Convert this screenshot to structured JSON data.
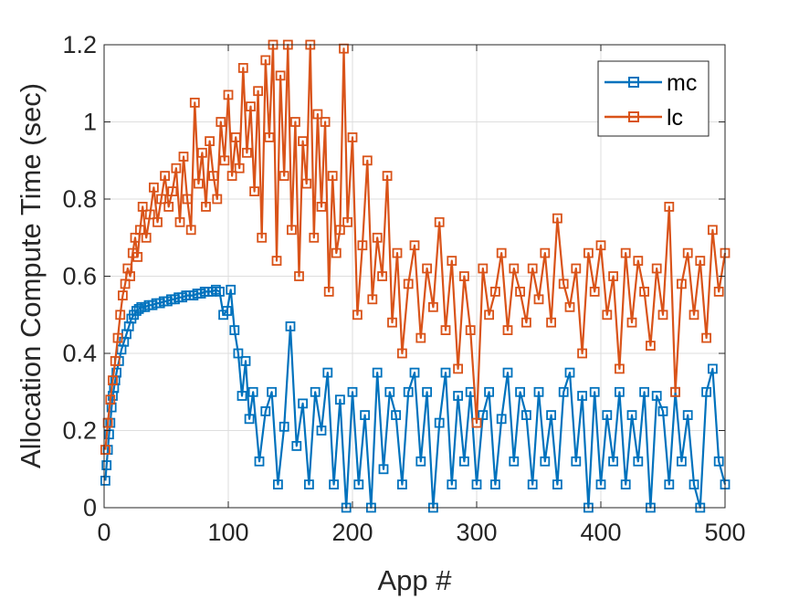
{
  "chart_data": {
    "type": "line",
    "xlabel": "App #",
    "ylabel": "Allocation Compute Time (sec)",
    "xlim": [
      0,
      500
    ],
    "ylim": [
      0,
      1.2
    ],
    "xticks": [
      0,
      100,
      200,
      300,
      400,
      500
    ],
    "yticks": [
      0,
      0.2,
      0.4,
      0.6,
      0.8,
      1,
      1.2
    ],
    "xtick_labels": [
      "0",
      "100",
      "200",
      "300",
      "400",
      "500"
    ],
    "ytick_labels": [
      "0",
      "0.2",
      "0.4",
      "0.6",
      "0.8",
      "1",
      "1.2"
    ],
    "grid": true,
    "legend_position": "top-right",
    "markers": "square",
    "series": [
      {
        "name": "mc",
        "color": "#0072BD",
        "x": [
          1,
          2,
          3,
          4,
          5,
          6,
          7,
          8,
          9,
          10,
          12,
          14,
          16,
          18,
          20,
          22,
          24,
          26,
          28,
          30,
          33,
          36,
          39,
          42,
          45,
          48,
          51,
          54,
          57,
          60,
          63,
          66,
          69,
          72,
          75,
          78,
          81,
          84,
          87,
          90,
          93,
          96,
          99,
          102,
          105,
          108,
          111,
          114,
          117,
          120,
          125,
          130,
          135,
          140,
          145,
          150,
          155,
          160,
          165,
          170,
          175,
          180,
          185,
          190,
          195,
          200,
          205,
          210,
          215,
          220,
          225,
          230,
          235,
          240,
          245,
          250,
          255,
          260,
          265,
          270,
          275,
          280,
          285,
          290,
          295,
          300,
          305,
          310,
          315,
          320,
          325,
          330,
          335,
          340,
          345,
          350,
          355,
          360,
          365,
          370,
          375,
          380,
          385,
          390,
          395,
          400,
          405,
          410,
          415,
          420,
          425,
          430,
          435,
          440,
          445,
          450,
          455,
          460,
          465,
          470,
          475,
          480,
          485,
          490,
          495,
          500
        ],
        "y": [
          0.07,
          0.11,
          0.15,
          0.19,
          0.22,
          0.26,
          0.29,
          0.31,
          0.33,
          0.35,
          0.38,
          0.41,
          0.43,
          0.45,
          0.47,
          0.49,
          0.5,
          0.51,
          0.515,
          0.52,
          0.52,
          0.525,
          0.525,
          0.53,
          0.53,
          0.535,
          0.535,
          0.54,
          0.54,
          0.545,
          0.545,
          0.55,
          0.55,
          0.55,
          0.555,
          0.555,
          0.56,
          0.56,
          0.56,
          0.565,
          0.56,
          0.5,
          0.51,
          0.565,
          0.46,
          0.4,
          0.29,
          0.38,
          0.23,
          0.3,
          0.12,
          0.25,
          0.3,
          0.06,
          0.21,
          0.47,
          0.16,
          0.27,
          0.06,
          0.3,
          0.2,
          0.35,
          0.06,
          0.28,
          0,
          0.3,
          0.06,
          0.24,
          0,
          0.35,
          0.1,
          0.3,
          0.24,
          0.06,
          0.3,
          0.35,
          0.12,
          0.3,
          0,
          0.22,
          0.35,
          0.06,
          0.29,
          0.12,
          0.3,
          0.06,
          0.24,
          0.3,
          0.06,
          0.23,
          0.35,
          0.12,
          0.3,
          0.24,
          0.06,
          0.3,
          0.12,
          0.24,
          0.06,
          0.3,
          0.35,
          0.12,
          0.29,
          0,
          0.3,
          0.06,
          0.24,
          0.12,
          0.3,
          0.06,
          0.24,
          0.12,
          0.3,
          0,
          0.29,
          0.25,
          0.06,
          0.3,
          0.12,
          0.24,
          0.06,
          0,
          0.3,
          0.36,
          0.12,
          0.06
        ]
      },
      {
        "name": "lc",
        "color": "#D95319",
        "x": [
          1,
          3,
          5,
          7,
          9,
          11,
          13,
          15,
          17,
          19,
          21,
          23,
          25,
          27,
          29,
          31,
          34,
          37,
          40,
          43,
          46,
          49,
          52,
          55,
          58,
          61,
          64,
          67,
          70,
          73,
          76,
          79,
          82,
          85,
          88,
          91,
          94,
          97,
          100,
          103,
          106,
          109,
          112,
          115,
          118,
          121,
          124,
          127,
          130,
          133,
          136,
          139,
          142,
          145,
          148,
          151,
          154,
          157,
          160,
          163,
          166,
          169,
          172,
          175,
          178,
          181,
          184,
          187,
          190,
          193,
          196,
          200,
          204,
          208,
          212,
          216,
          220,
          224,
          228,
          232,
          236,
          240,
          245,
          250,
          255,
          260,
          265,
          270,
          275,
          280,
          285,
          290,
          295,
          300,
          305,
          310,
          315,
          320,
          325,
          330,
          335,
          340,
          345,
          350,
          355,
          360,
          365,
          370,
          375,
          380,
          385,
          390,
          395,
          400,
          405,
          410,
          415,
          420,
          425,
          430,
          435,
          440,
          445,
          450,
          455,
          460,
          465,
          470,
          475,
          480,
          485,
          490,
          495,
          500
        ],
        "y": [
          0.15,
          0.22,
          0.28,
          0.33,
          0.38,
          0.44,
          0.5,
          0.55,
          0.58,
          0.62,
          0.6,
          0.66,
          0.7,
          0.65,
          0.72,
          0.78,
          0.7,
          0.76,
          0.83,
          0.74,
          0.8,
          0.86,
          0.78,
          0.82,
          0.88,
          0.74,
          0.91,
          0.8,
          0.72,
          1.05,
          0.84,
          0.92,
          0.78,
          0.95,
          0.86,
          0.8,
          1.0,
          0.9,
          1.07,
          0.86,
          0.96,
          0.88,
          1.14,
          0.92,
          1.04,
          0.82,
          1.08,
          0.7,
          1.16,
          0.96,
          1.2,
          0.64,
          1.12,
          0.86,
          1.2,
          0.72,
          1.0,
          0.6,
          0.95,
          0.84,
          1.2,
          0.7,
          1.02,
          0.78,
          1.0,
          0.56,
          0.86,
          0.66,
          0.72,
          1.19,
          0.74,
          0.96,
          0.5,
          0.68,
          0.9,
          0.54,
          0.7,
          0.6,
          0.86,
          0.48,
          0.66,
          0.4,
          0.58,
          0.68,
          0.44,
          0.62,
          0.52,
          0.74,
          0.46,
          0.64,
          0.36,
          0.6,
          0.46,
          0.22,
          0.62,
          0.5,
          0.56,
          0.66,
          0.46,
          0.62,
          0.56,
          0.48,
          0.62,
          0.54,
          0.66,
          0.48,
          0.75,
          0.58,
          0.52,
          0.62,
          0.4,
          0.66,
          0.56,
          0.68,
          0.5,
          0.6,
          0.36,
          0.66,
          0.48,
          0.64,
          0.56,
          0.42,
          0.62,
          0.5,
          0.78,
          0.3,
          0.58,
          0.66,
          0.5,
          0.64,
          0.44,
          0.72,
          0.56,
          0.66
        ]
      }
    ]
  }
}
